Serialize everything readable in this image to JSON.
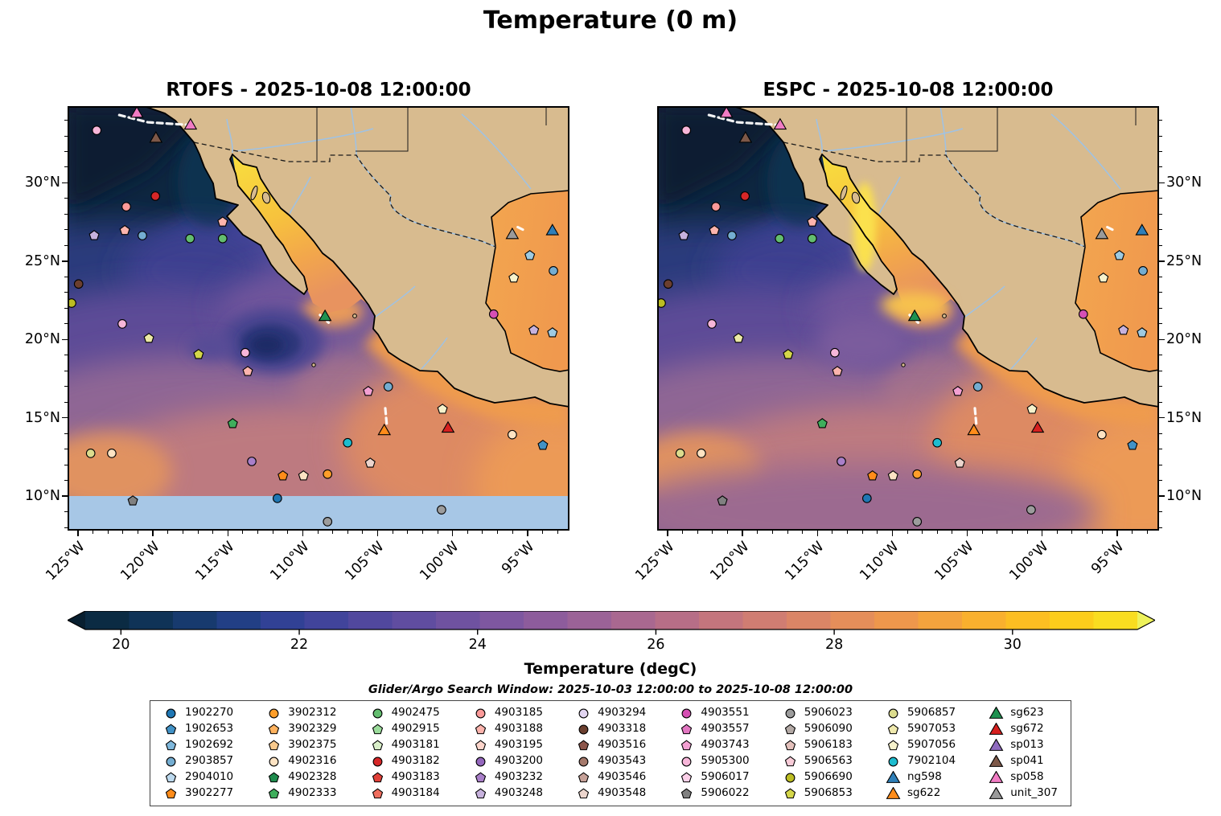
{
  "chart_data": {
    "type": "heatmap",
    "title": "Temperature (0 m)",
    "subtitle": "Glider/Argo Search Window: 2025-10-03 12:00:00 to 2025-10-08 12:00:00",
    "panels": [
      {
        "id": "rtofs",
        "title": "RTOFS - 2025-10-08 12:00:00",
        "y_side": "left"
      },
      {
        "id": "espc",
        "title": "ESPC - 2025-10-08 12:00:00",
        "y_side": "right"
      }
    ],
    "axes": {
      "lon_range": [
        -125.7,
        -92.2
      ],
      "lat_range": [
        34.9,
        7.8
      ],
      "x_ticks": [
        {
          "lon": -125,
          "label": "125°W"
        },
        {
          "lon": -120,
          "label": "120°W"
        },
        {
          "lon": -115,
          "label": "115°W"
        },
        {
          "lon": -110,
          "label": "110°W"
        },
        {
          "lon": -105,
          "label": "105°W"
        },
        {
          "lon": -100,
          "label": "100°W"
        },
        {
          "lon": -95,
          "label": "95°W"
        }
      ],
      "y_ticks": [
        {
          "lat": 30,
          "label": "30°N"
        },
        {
          "lat": 25,
          "label": "25°N"
        },
        {
          "lat": 20,
          "label": "20°N"
        },
        {
          "lat": 15,
          "label": "15°N"
        },
        {
          "lat": 10,
          "label": "10°N"
        }
      ]
    },
    "colorbar": {
      "label": "Temperature (degC)",
      "domain": [
        19.6,
        31.4
      ],
      "ticks": [
        20,
        22,
        24,
        26,
        28,
        30
      ],
      "arrow_left": "#081f30",
      "arrow_right": "#eef25b",
      "band_colors": [
        "#0b2b43",
        "#0f3357",
        "#173a6e",
        "#223f85",
        "#314195",
        "#41449b",
        "#51489e",
        "#604da0",
        "#6f52a0",
        "#7e57a0",
        "#8d5c9c",
        "#9b6297",
        "#a96890",
        "#b76e87",
        "#c4757d",
        "#d07d72",
        "#db8566",
        "#e58e5a",
        "#ee974c",
        "#f4a33d",
        "#f9b02e",
        "#fcbe22",
        "#fccd1b",
        "#f9dd20"
      ]
    },
    "legend": {
      "entries": [
        {
          "label": "1902270",
          "marker": "circle",
          "color": "#1f77b4"
        },
        {
          "label": "1902653",
          "marker": "pentagon",
          "color": "#4292c6"
        },
        {
          "label": "1902692",
          "marker": "pentagon",
          "color": "#7fb8dc"
        },
        {
          "label": "2903857",
          "marker": "circle",
          "color": "#74add1"
        },
        {
          "label": "2904010",
          "marker": "pentagon",
          "color": "#bcd9ee"
        },
        {
          "label": "3902277",
          "marker": "pentagon",
          "color": "#ff8c1a"
        },
        {
          "label": "3902312",
          "marker": "circle",
          "color": "#ff9e2a"
        },
        {
          "label": "3902329",
          "marker": "pentagon",
          "color": "#ffb25e"
        },
        {
          "label": "3902375",
          "marker": "pentagon",
          "color": "#f8c98c"
        },
        {
          "label": "4902316",
          "marker": "circle",
          "color": "#fde3c3"
        },
        {
          "label": "4902328",
          "marker": "pentagon",
          "color": "#1e8b4d"
        },
        {
          "label": "4902333",
          "marker": "pentagon",
          "color": "#3fae5c"
        },
        {
          "label": "4902475",
          "marker": "circle",
          "color": "#63bd6f"
        },
        {
          "label": "4902915",
          "marker": "pentagon",
          "color": "#9bdc9b"
        },
        {
          "label": "4903181",
          "marker": "pentagon",
          "color": "#d9efc9"
        },
        {
          "label": "4903182",
          "marker": "circle",
          "color": "#d62728"
        },
        {
          "label": "4903183",
          "marker": "pentagon",
          "color": "#e04038"
        },
        {
          "label": "4903184",
          "marker": "pentagon",
          "color": "#ef6e5e"
        },
        {
          "label": "4903185",
          "marker": "circle",
          "color": "#fb9a99"
        },
        {
          "label": "4903188",
          "marker": "pentagon",
          "color": "#fcb4ad"
        },
        {
          "label": "4903195",
          "marker": "pentagon",
          "color": "#fdd5cb"
        },
        {
          "label": "4903200",
          "marker": "circle",
          "color": "#9467bd"
        },
        {
          "label": "4903232",
          "marker": "pentagon",
          "color": "#a97fc9"
        },
        {
          "label": "4903248",
          "marker": "pentagon",
          "color": "#c7b2dd"
        },
        {
          "label": "4903294",
          "marker": "circle",
          "color": "#e2d5f1"
        },
        {
          "label": "4903318",
          "marker": "circle",
          "color": "#6b3f2f"
        },
        {
          "label": "4903516",
          "marker": "pentagon",
          "color": "#8c564b"
        },
        {
          "label": "4903543",
          "marker": "circle",
          "color": "#a5796b"
        },
        {
          "label": "4903546",
          "marker": "pentagon",
          "color": "#c6a198"
        },
        {
          "label": "4903548",
          "marker": "pentagon",
          "color": "#ecd5cd"
        },
        {
          "label": "4903551",
          "marker": "circle",
          "color": "#d64fb4"
        },
        {
          "label": "4903557",
          "marker": "pentagon",
          "color": "#e377c2"
        },
        {
          "label": "4903743",
          "marker": "pentagon",
          "color": "#f3a0d2"
        },
        {
          "label": "5905300",
          "marker": "circle",
          "color": "#f7b6d9"
        },
        {
          "label": "5906017",
          "marker": "pentagon",
          "color": "#fbd0e8"
        },
        {
          "label": "5906022",
          "marker": "pentagon",
          "color": "#808080"
        },
        {
          "label": "5906023",
          "marker": "circle",
          "color": "#9c9c9c"
        },
        {
          "label": "5906090",
          "marker": "pentagon",
          "color": "#b4aaa6"
        },
        {
          "label": "5906183",
          "marker": "pentagon",
          "color": "#e3c0bb"
        },
        {
          "label": "5906563",
          "marker": "pentagon",
          "color": "#f8ccd8"
        },
        {
          "label": "5906690",
          "marker": "circle",
          "color": "#bcbd22"
        },
        {
          "label": "5906853",
          "marker": "pentagon",
          "color": "#d4d64a"
        },
        {
          "label": "5906857",
          "marker": "circle",
          "color": "#dcdc8e"
        },
        {
          "label": "5907053",
          "marker": "pentagon",
          "color": "#efe9ad"
        },
        {
          "label": "5907056",
          "marker": "pentagon",
          "color": "#f6f2cc"
        },
        {
          "label": "7902104",
          "marker": "circle",
          "color": "#1dbccf"
        },
        {
          "label": "ng598",
          "marker": "triangle",
          "color": "#2f7fb8"
        },
        {
          "label": "sg622",
          "marker": "triangle",
          "color": "#ff8c1a"
        },
        {
          "label": "sg623",
          "marker": "triangle",
          "color": "#1e9150"
        },
        {
          "label": "sg672",
          "marker": "triangle",
          "color": "#d7201f"
        },
        {
          "label": "sp013",
          "marker": "triangle",
          "color": "#8f6bbf"
        },
        {
          "label": "sp041",
          "marker": "triangle",
          "color": "#7d5848"
        },
        {
          "label": "sp058",
          "marker": "triangle",
          "color": "#f07bc3"
        },
        {
          "label": "unit_307",
          "marker": "triangle",
          "color": "#9a9a9a"
        }
      ]
    },
    "map_markers": [
      {
        "shape": "triangle",
        "color": "#f07bc3",
        "fx": 0.138,
        "fy": 0.017
      },
      {
        "shape": "triangle",
        "color": "#f07bc3",
        "fx": 0.245,
        "fy": 0.045
      },
      {
        "shape": "triangle",
        "color": "#7d5848",
        "fx": 0.176,
        "fy": 0.076
      },
      {
        "shape": "circle",
        "color": "#f7b6d9",
        "fx": 0.058,
        "fy": 0.057
      },
      {
        "shape": "circle",
        "color": "#d62728",
        "fx": 0.175,
        "fy": 0.212
      },
      {
        "shape": "circle",
        "color": "#fb9a99",
        "fx": 0.117,
        "fy": 0.237
      },
      {
        "shape": "pentagon",
        "color": "#fcb4ad",
        "fx": 0.114,
        "fy": 0.293
      },
      {
        "shape": "pentagon",
        "color": "#c7b2dd",
        "fx": 0.053,
        "fy": 0.305
      },
      {
        "shape": "circle",
        "color": "#74add1",
        "fx": 0.149,
        "fy": 0.305
      },
      {
        "shape": "circle",
        "color": "#63bd6f",
        "fx": 0.244,
        "fy": 0.312
      },
      {
        "shape": "pentagon",
        "color": "#fcb4ad",
        "fx": 0.309,
        "fy": 0.273
      },
      {
        "shape": "circle",
        "color": "#63bd6f",
        "fx": 0.309,
        "fy": 0.312
      },
      {
        "shape": "triangle",
        "color": "#9a9a9a",
        "fx": 0.886,
        "fy": 0.303
      },
      {
        "shape": "triangle",
        "color": "#2f7fb8",
        "fx": 0.966,
        "fy": 0.294
      },
      {
        "shape": "pentagon",
        "color": "#9ecae1",
        "fx": 0.921,
        "fy": 0.352
      },
      {
        "shape": "circle",
        "color": "#74add1",
        "fx": 0.968,
        "fy": 0.388
      },
      {
        "shape": "pentagon",
        "color": "#f6f2cc",
        "fx": 0.889,
        "fy": 0.405
      },
      {
        "shape": "circle",
        "color": "#6b3f2f",
        "fx": 0.022,
        "fy": 0.419
      },
      {
        "shape": "circle",
        "color": "#bcbd22",
        "fx": 0.008,
        "fy": 0.464
      },
      {
        "shape": "circle",
        "color": "#dcdc8e",
        "fx": 0.046,
        "fy": 0.818
      },
      {
        "shape": "circle",
        "color": "#fde3c3",
        "fx": 0.088,
        "fy": 0.818
      },
      {
        "shape": "triangle",
        "color": "#1e9150",
        "fx": 0.513,
        "fy": 0.496
      },
      {
        "shape": "circle",
        "color": "#f7b6d9",
        "fx": 0.109,
        "fy": 0.513
      },
      {
        "shape": "pentagon",
        "color": "#c7b2dd",
        "fx": 0.929,
        "fy": 0.528
      },
      {
        "shape": "pentagon",
        "color": "#9ecae1",
        "fx": 0.966,
        "fy": 0.534
      },
      {
        "shape": "circle",
        "color": "#d64fb4",
        "fx": 0.849,
        "fy": 0.49
      },
      {
        "shape": "pentagon",
        "color": "#ece9a5",
        "fx": 0.162,
        "fy": 0.547
      },
      {
        "shape": "pentagon",
        "color": "#d4d64a",
        "fx": 0.261,
        "fy": 0.585
      },
      {
        "shape": "circle",
        "color": "#f7b6d9",
        "fx": 0.354,
        "fy": 0.581
      },
      {
        "shape": "pentagon",
        "color": "#fcb4ad",
        "fx": 0.359,
        "fy": 0.625
      },
      {
        "shape": "pentagon",
        "color": "#f3a0d2",
        "fx": 0.599,
        "fy": 0.672
      },
      {
        "shape": "circle",
        "color": "#74add1",
        "fx": 0.639,
        "fy": 0.661
      },
      {
        "shape": "pentagon",
        "color": "#3fae5c",
        "fx": 0.329,
        "fy": 0.748
      },
      {
        "shape": "triangle",
        "color": "#ff8c1a",
        "fx": 0.631,
        "fy": 0.765
      },
      {
        "shape": "triangle",
        "color": "#d7201f",
        "fx": 0.758,
        "fy": 0.759
      },
      {
        "shape": "pentagon",
        "color": "#f6f2cc",
        "fx": 0.747,
        "fy": 0.714
      },
      {
        "shape": "circle",
        "color": "#fde3c3",
        "fx": 0.886,
        "fy": 0.774
      },
      {
        "shape": "pentagon",
        "color": "#4292c6",
        "fx": 0.947,
        "fy": 0.799
      },
      {
        "shape": "circle",
        "color": "#1dbccf",
        "fx": 0.558,
        "fy": 0.793
      },
      {
        "shape": "pentagon",
        "color": "#ecd5cd",
        "fx": 0.603,
        "fy": 0.841
      },
      {
        "shape": "circle",
        "color": "#a97fc9",
        "fx": 0.367,
        "fy": 0.837
      },
      {
        "shape": "pentagon",
        "color": "#ff8c1a",
        "fx": 0.429,
        "fy": 0.871
      },
      {
        "shape": "pentagon",
        "color": "#fde3c3",
        "fx": 0.47,
        "fy": 0.871
      },
      {
        "shape": "circle",
        "color": "#ff9e2a",
        "fx": 0.518,
        "fy": 0.867
      },
      {
        "shape": "circle",
        "color": "#1f77b4",
        "fx": 0.418,
        "fy": 0.924
      },
      {
        "shape": "pentagon",
        "color": "#808080",
        "fx": 0.13,
        "fy": 0.93
      },
      {
        "shape": "circle",
        "color": "#9c9c9c",
        "fx": 0.745,
        "fy": 0.951
      },
      {
        "shape": "circle",
        "color": "#9c9c9c",
        "fx": 0.518,
        "fy": 0.979
      }
    ],
    "tracks": [
      {
        "points": [
          [
            0.103,
            0.021
          ],
          [
            0.16,
            0.038
          ],
          [
            0.237,
            0.044
          ]
        ]
      },
      {
        "points": [
          [
            0.633,
            0.712
          ],
          [
            0.636,
            0.752
          ]
        ]
      },
      {
        "points": [
          [
            0.897,
            0.285
          ],
          [
            0.914,
            0.295
          ]
        ]
      },
      {
        "points": [
          [
            0.503,
            0.492
          ],
          [
            0.52,
            0.51
          ]
        ]
      }
    ]
  }
}
